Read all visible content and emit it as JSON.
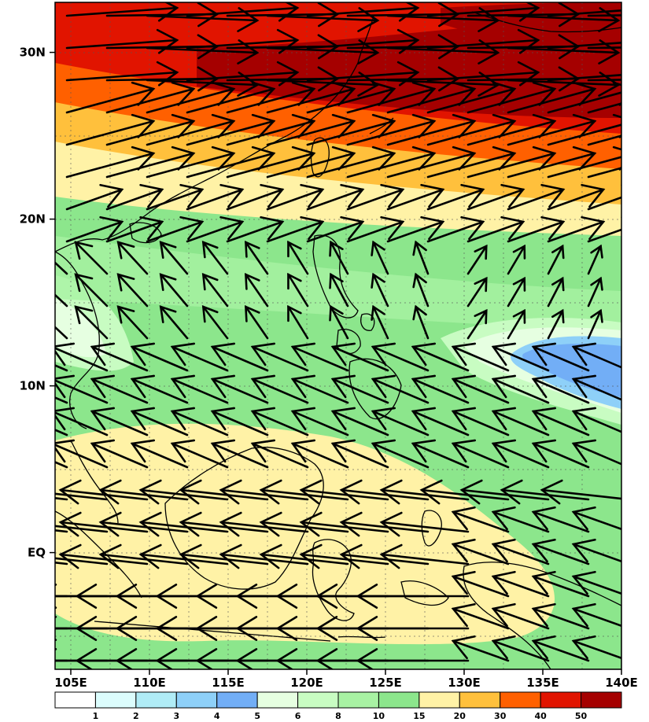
{
  "map": {
    "lon_range": [
      104,
      140
    ],
    "lat_range": [
      -7,
      33
    ],
    "x_ticks": [
      {
        "lon": 105,
        "label": "105E"
      },
      {
        "lon": 110,
        "label": "110E"
      },
      {
        "lon": 115,
        "label": "115E"
      },
      {
        "lon": 120,
        "label": "120E"
      },
      {
        "lon": 125,
        "label": "125E"
      },
      {
        "lon": 130,
        "label": "130E"
      },
      {
        "lon": 135,
        "label": "135E"
      },
      {
        "lon": 140,
        "label": "140E"
      }
    ],
    "y_ticks": [
      {
        "lat": 30,
        "label": "30N"
      },
      {
        "lat": 20,
        "label": "20N"
      },
      {
        "lat": 10,
        "label": "10N"
      },
      {
        "lat": 0,
        "label": "EQ"
      }
    ],
    "grid": "dotted",
    "fields": [
      "wind speed shading",
      "wind vectors",
      "coastlines"
    ]
  },
  "colorbar": {
    "levels": [
      "1",
      "2",
      "3",
      "4",
      "5",
      "6",
      "8",
      "10",
      "15",
      "20",
      "30",
      "40",
      "50"
    ],
    "colors": [
      "#ffffff",
      "#dcfdfd",
      "#b0ecf6",
      "#8ed0f8",
      "#72aef6",
      "#e6ffe1",
      "#c8fcc2",
      "#a8f2a3",
      "#8ce68c",
      "#fff2a6",
      "#ffc03c",
      "#ff6000",
      "#e11400",
      "#a50000"
    ]
  }
}
